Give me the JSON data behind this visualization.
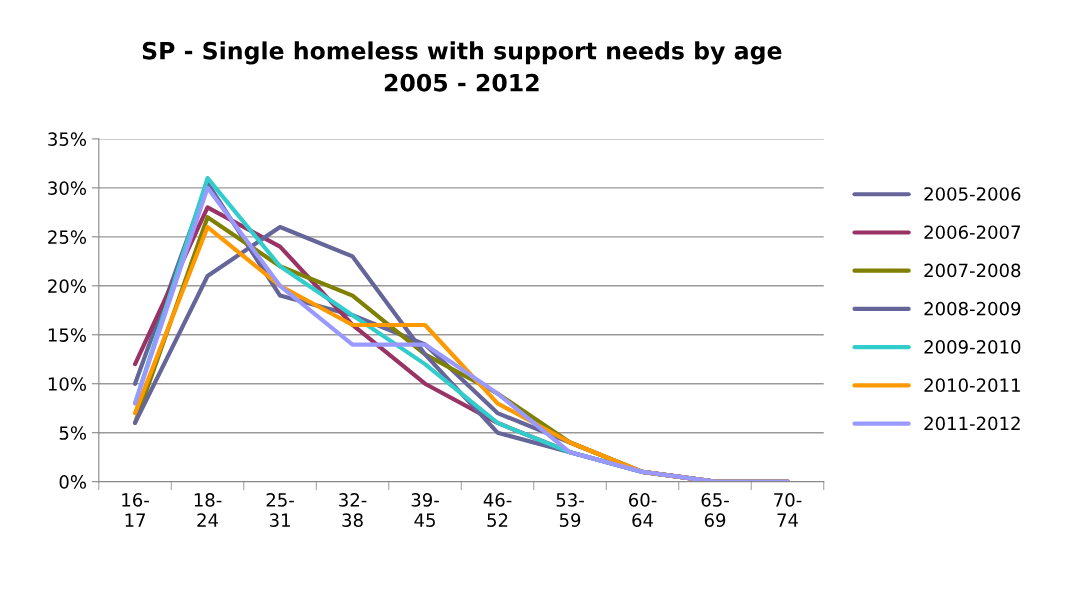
{
  "chart_data": {
    "type": "line",
    "title": "SP - Single homeless with support needs by age\n2005 - 2012",
    "categories": [
      "16-\n17",
      "18-\n24",
      "25-\n31",
      "32-\n38",
      "39-\n45",
      "46-\n52",
      "53-\n59",
      "60-\n64",
      "65-\n69",
      "70-\n74"
    ],
    "series": [
      {
        "name": "2005-2006",
        "color": "#65659a",
        "values": [
          10,
          30.5,
          19,
          17,
          14,
          7,
          4,
          1,
          0,
          0
        ]
      },
      {
        "name": "2006-2007",
        "color": "#993366",
        "values": [
          12,
          28,
          24,
          16,
          10,
          6,
          3,
          1,
          0,
          0
        ]
      },
      {
        "name": "2007-2008",
        "color": "#808000",
        "values": [
          6,
          27,
          22,
          19,
          13,
          9,
          4,
          1,
          0,
          0
        ]
      },
      {
        "name": "2008-2009",
        "color": "#65659a",
        "values": [
          6,
          21,
          26,
          23,
          13,
          5,
          3,
          1,
          0,
          0
        ]
      },
      {
        "name": "2009-2010",
        "color": "#33cccc",
        "values": [
          8,
          31,
          22,
          17,
          12,
          6,
          3,
          1,
          null,
          null
        ]
      },
      {
        "name": "2010-2011",
        "color": "#ff9900",
        "values": [
          7,
          26,
          20,
          16,
          16,
          8,
          4,
          1,
          0,
          0
        ]
      },
      {
        "name": "2011-2012",
        "color": "#9999ff",
        "values": [
          8,
          30,
          20,
          14,
          14,
          9,
          3,
          1,
          0,
          0
        ]
      }
    ],
    "ylim": [
      0,
      35
    ],
    "yticks": [
      {
        "value": 0,
        "label": "0%"
      },
      {
        "value": 5,
        "label": "5%"
      },
      {
        "value": 10,
        "label": "10%"
      },
      {
        "value": 15,
        "label": "15%"
      },
      {
        "value": 20,
        "label": "20%"
      },
      {
        "value": 25,
        "label": "25%"
      },
      {
        "value": 30,
        "label": "30%"
      },
      {
        "value": 35,
        "label": "35%"
      }
    ],
    "grid": "y",
    "legend": "right",
    "marker": "none",
    "line_style": "solid"
  }
}
